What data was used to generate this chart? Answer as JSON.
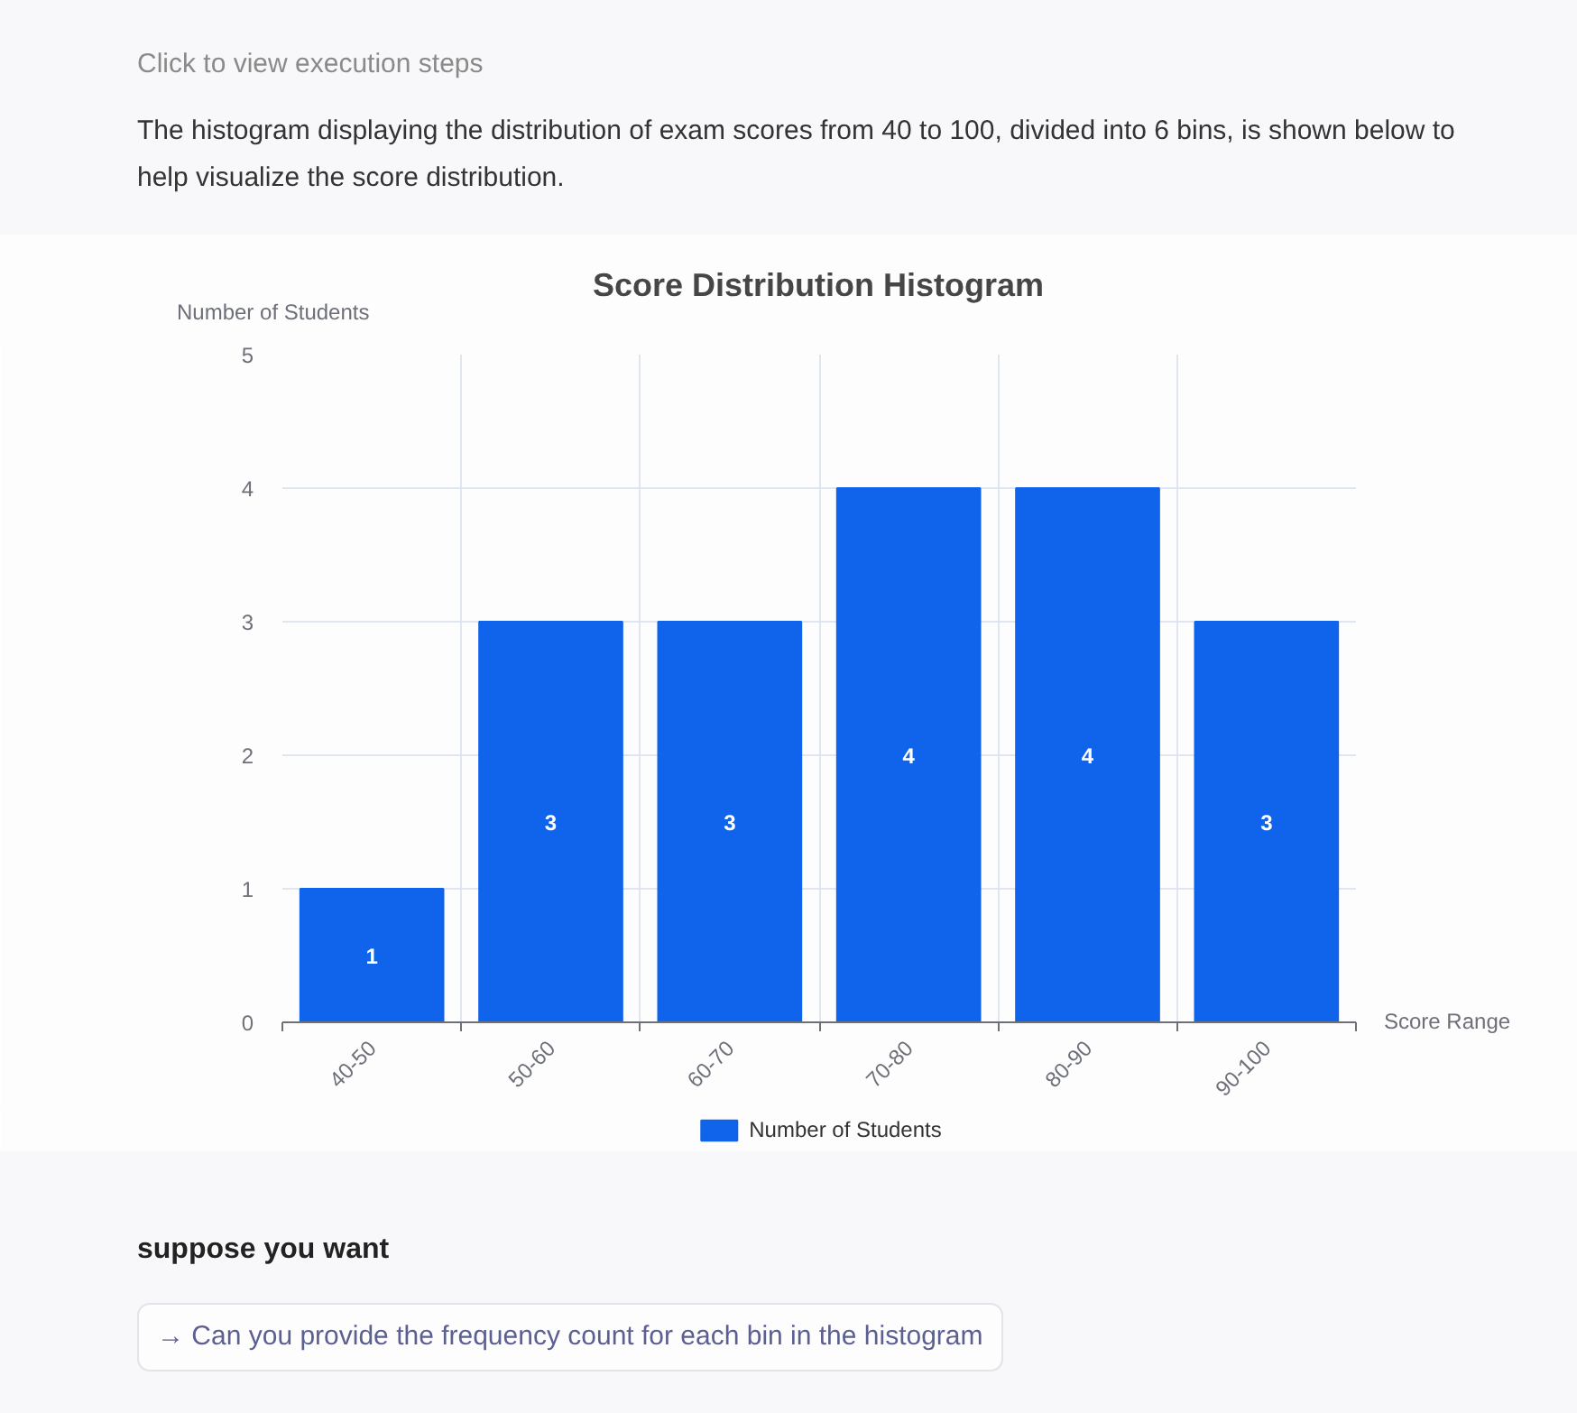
{
  "chart_data": {
    "type": "bar",
    "title": "Score Distribution Histogram",
    "ylabel": "Number of Students",
    "xlabel": "Score Range",
    "categories": [
      "40-50",
      "50-60",
      "60-70",
      "70-80",
      "80-90",
      "90-100"
    ],
    "series": [
      {
        "name": "Number of Students",
        "color": "#1063eb",
        "values": [
          1,
          3,
          3,
          4,
          4,
          3
        ]
      }
    ],
    "ylim": [
      0,
      5
    ],
    "yticks": [
      0,
      1,
      2,
      3,
      4,
      5
    ],
    "grid": true,
    "legend": "bottom",
    "data_labels": true,
    "annotations": [
      "Click to view execution steps",
      "The histogram displaying the distribution of exam scores from 40 to 100, divided into 6 bins, is shown below to help visualize the score distribution.",
      "suppose you want",
      "→ Can you provide the frequency count for each bin in the histogram"
    ]
  }
}
